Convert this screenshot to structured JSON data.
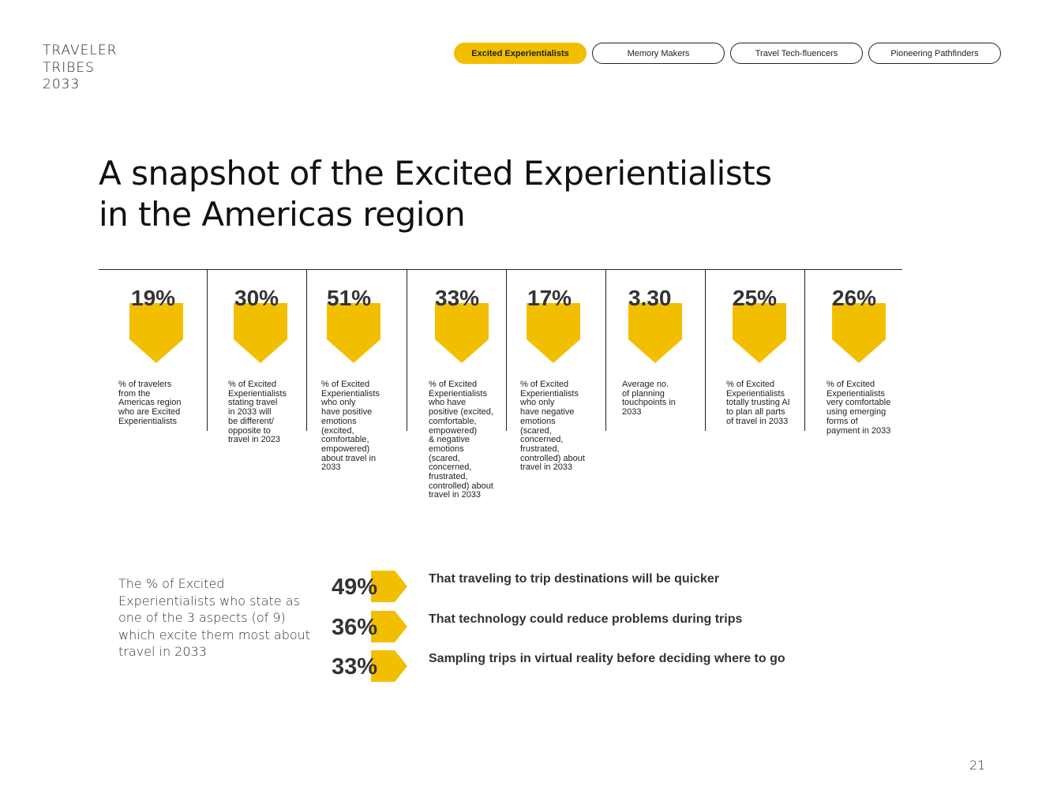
{
  "brand": {
    "line1": "TRAVELER",
    "line2": "TRIBES",
    "line3": "2033"
  },
  "tabs": [
    {
      "label": "Excited Experientialists",
      "active": true
    },
    {
      "label": "Memory Makers",
      "active": false
    },
    {
      "label": "Travel Tech-fluencers",
      "active": false
    },
    {
      "label": "Pioneering Pathfinders",
      "active": false
    }
  ],
  "title": {
    "line1": "A snapshot of the Excited Experientialists",
    "line2": "in the Americas region"
  },
  "stats": [
    {
      "value": "19%",
      "desc": "% of travelers\nfrom the\nAmericas region\nwho are Excited\nExperientialists"
    },
    {
      "value": "30%",
      "desc": "% of Excited\nExperientialists\nstating travel\nin 2033 will\nbe different/\nopposite to\ntravel in 2023"
    },
    {
      "value": "51%",
      "desc": "% of Excited\nExperientialists\nwho only\nhave positive\nemotions\n(excited,\ncomfortable,\nempowered)\nabout travel in\n2033"
    },
    {
      "value": "33%",
      "desc": "% of Excited\nExperientialists\nwho have\npositive (excited,\ncomfortable,\nempowered)\n& negative\nemotions\n(scared,\nconcerned,\nfrustrated,\ncontrolled) about\ntravel in 2033"
    },
    {
      "value": "17%",
      "desc": "% of Excited\nExperientialists\nwho only\nhave negative\nemotions\n(scared,\nconcerned,\nfrustrated,\ncontrolled) about\ntravel in 2033"
    },
    {
      "value": "3.30",
      "desc": "Average no.\nof planning\ntouchpoints in\n2033"
    },
    {
      "value": "25%",
      "desc": "% of Excited\nExperientialists\ntotally trusting AI\nto plan all parts\nof travel in 2033"
    },
    {
      "value": "26%",
      "desc": "% of Excited\nExperientialists\nvery comfortable\nusing emerging\nforms of\npayment in 2033"
    }
  ],
  "aspects": {
    "intro": "The % of Excited Experientialists who state as one of the 3 aspects (of 9) which excite them most about travel in 2033",
    "items": [
      {
        "value": "49%",
        "label": "That traveling to trip destinations will be quicker"
      },
      {
        "value": "36%",
        "label": "That technology could reduce problems during trips"
      },
      {
        "value": "33%",
        "label": "Sampling trips in virtual reality before deciding where to go"
      }
    ]
  },
  "page_number": "21",
  "colors": {
    "accent": "#f2bf00",
    "text": "#333333"
  }
}
